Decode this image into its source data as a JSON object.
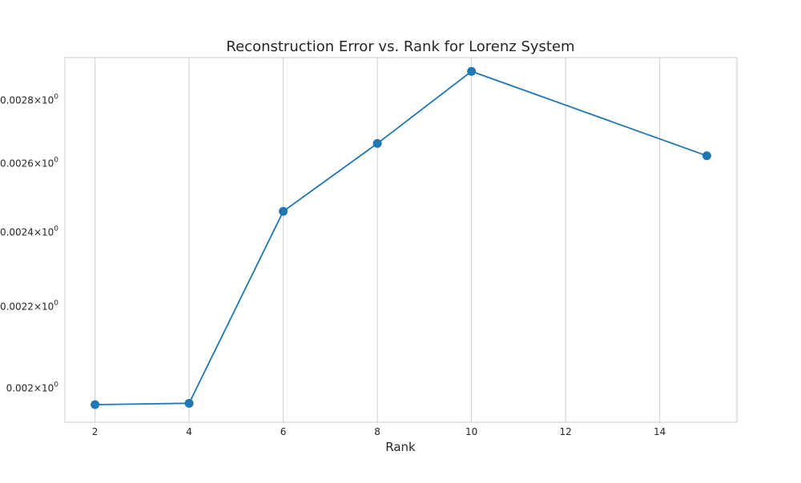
{
  "chart_data": {
    "type": "line",
    "title": "Reconstruction Error vs. Rank for Lorenz System",
    "xlabel": "Rank",
    "ylabel": "",
    "x": [
      2,
      4,
      6,
      8,
      10,
      15
    ],
    "series": [
      {
        "values": [
          0.001962,
          0.001965,
          0.002459,
          0.002662,
          0.002896,
          0.002624
        ],
        "color": "#1f77b4"
      }
    ],
    "xlim": [
      1.36,
      15.64
    ],
    "ylim": [
      0.001922,
      0.002943
    ],
    "xticks": [
      {
        "value": 2,
        "label": "2"
      },
      {
        "value": 4,
        "label": "4"
      },
      {
        "value": 6,
        "label": "6"
      },
      {
        "value": 8,
        "label": "8"
      },
      {
        "value": 10,
        "label": "10"
      },
      {
        "value": 12,
        "label": "12"
      },
      {
        "value": 14,
        "label": "14"
      }
    ],
    "yticks": [
      {
        "value": 0.002,
        "label_mantissa": "0.002",
        "label_base": "10",
        "label_exp": "0"
      },
      {
        "value": 0.0022,
        "label_mantissa": "0.0022",
        "label_base": "10",
        "label_exp": "0"
      },
      {
        "value": 0.0024,
        "label_mantissa": "0.0024",
        "label_base": "10",
        "label_exp": "0"
      },
      {
        "value": 0.0026,
        "label_mantissa": "0.0026",
        "label_base": "10",
        "label_exp": "0"
      },
      {
        "value": 0.0028,
        "label_mantissa": "0.0028",
        "label_base": "10",
        "label_exp": "0"
      }
    ],
    "y_scale": "log",
    "grid": "x-major",
    "legend": "none"
  },
  "colors": {
    "line": "#1f77b4",
    "grid": "#cccccc",
    "spine": "#cccccc",
    "text": "#262626"
  }
}
